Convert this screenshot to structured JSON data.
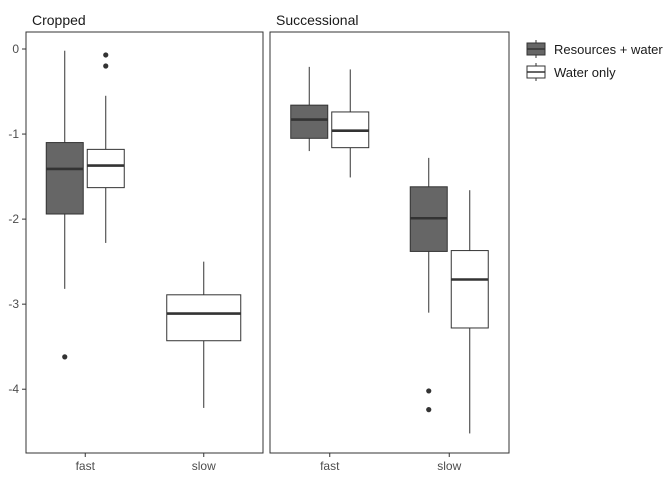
{
  "chart_data": {
    "type": "boxplot",
    "ylim": [
      -4.75,
      0.2
    ],
    "yticks": [
      0,
      -1,
      -2,
      -3,
      -4
    ],
    "ytick_labels": [
      "0",
      "-1",
      "-2",
      "-3",
      "-4"
    ],
    "categories": [
      "fast",
      "slow"
    ],
    "legend": {
      "position": "right",
      "entries": [
        {
          "name": "Resources + water",
          "fill": "#666666"
        },
        {
          "name": "Water only",
          "fill": "#ffffff"
        }
      ]
    },
    "panels": [
      {
        "title": "Cropped",
        "boxes": [
          {
            "category": "fast",
            "group": "Resources + water",
            "lower_whisker": -2.82,
            "q1": -1.94,
            "median": -1.41,
            "q3": -1.1,
            "upper_whisker": -0.02,
            "outliers": [
              -3.62
            ]
          },
          {
            "category": "fast",
            "group": "Water only",
            "lower_whisker": -2.28,
            "q1": -1.63,
            "median": -1.37,
            "q3": -1.18,
            "upper_whisker": -0.55,
            "outliers": [
              -0.07,
              -0.2
            ]
          },
          {
            "category": "slow",
            "group": "Water only",
            "single": true,
            "lower_whisker": -4.22,
            "q1": -3.43,
            "median": -3.11,
            "q3": -2.89,
            "upper_whisker": -2.5,
            "outliers": []
          }
        ]
      },
      {
        "title": "Successional",
        "boxes": [
          {
            "category": "fast",
            "group": "Resources + water",
            "lower_whisker": -1.2,
            "q1": -1.05,
            "median": -0.83,
            "q3": -0.66,
            "upper_whisker": -0.21,
            "outliers": []
          },
          {
            "category": "fast",
            "group": "Water only",
            "lower_whisker": -1.51,
            "q1": -1.16,
            "median": -0.96,
            "q3": -0.74,
            "upper_whisker": -0.24,
            "outliers": []
          },
          {
            "category": "slow",
            "group": "Resources + water",
            "lower_whisker": -3.1,
            "q1": -2.38,
            "median": -1.99,
            "q3": -1.62,
            "upper_whisker": -1.28,
            "outliers": [
              -4.02,
              -4.24
            ]
          },
          {
            "category": "slow",
            "group": "Water only",
            "lower_whisker": -4.52,
            "q1": -3.28,
            "median": -2.71,
            "q3": -2.37,
            "upper_whisker": -1.66,
            "outliers": []
          }
        ]
      }
    ]
  }
}
